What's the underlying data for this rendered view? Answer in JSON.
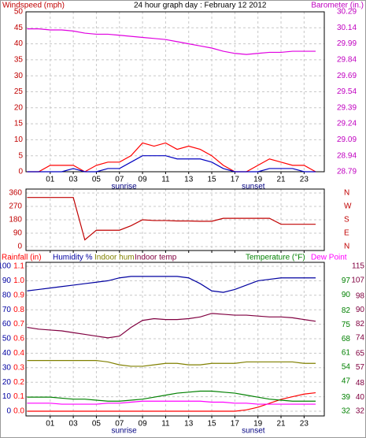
{
  "chart_data": [
    {
      "type": "line",
      "title": "24 hour graph day : February 12 2012",
      "ylabel": "Windspeed (mph)",
      "y2label": "Barometer (in.)",
      "x": [
        -1,
        0,
        1,
        2,
        3,
        4,
        5,
        6,
        7,
        8,
        9,
        10,
        11,
        12,
        13,
        14,
        15,
        16,
        17,
        18,
        19,
        20,
        21,
        22,
        23,
        24
      ],
      "xlim": [
        -1.1,
        24.75
      ],
      "xticks": [
        {
          "value": 1,
          "label": "01"
        },
        {
          "value": 3,
          "label": "03"
        },
        {
          "value": 5,
          "label": "05"
        },
        {
          "value": 7,
          "label": "07"
        },
        {
          "value": 9,
          "label": "09"
        },
        {
          "value": 11,
          "label": "11"
        },
        {
          "value": 13,
          "label": "13"
        },
        {
          "value": 15,
          "label": "15"
        },
        {
          "value": 17,
          "label": "17"
        },
        {
          "value": 19,
          "label": "19"
        },
        {
          "value": 21,
          "label": "21"
        },
        {
          "value": 23,
          "label": "23"
        }
      ],
      "annotations": [
        {
          "text": "sunrise",
          "x": 7.4
        },
        {
          "text": "sunset",
          "x": 18.6
        }
      ],
      "ylim": [
        0,
        50
      ],
      "yticks": [
        0,
        5,
        10,
        15,
        20,
        25,
        30,
        35,
        40,
        45,
        50
      ],
      "y2lim": [
        28.79,
        30.29
      ],
      "y2ticks": [
        28.79,
        28.94,
        29.09,
        29.24,
        29.39,
        29.54,
        29.69,
        29.84,
        29.99,
        30.14,
        30.29
      ],
      "grid": true,
      "series": [
        {
          "color": "#ff0000",
          "values": [
            0,
            0,
            2,
            2,
            2,
            0,
            2,
            3,
            3,
            5,
            9,
            8,
            9,
            7,
            8,
            7,
            5,
            2,
            0,
            0,
            2,
            4,
            3,
            2,
            2,
            0
          ]
        },
        {
          "color": "#0000c0",
          "values": [
            0,
            0,
            0,
            0,
            1,
            0,
            0,
            1,
            1,
            3,
            5,
            5,
            5,
            4,
            4,
            4,
            3,
            1,
            0,
            0,
            0,
            1,
            1,
            1,
            0,
            0
          ]
        },
        {
          "color": "#e000e0",
          "axis": "y2",
          "values": [
            30.13,
            30.13,
            30.12,
            30.12,
            30.11,
            30.09,
            30.08,
            30.08,
            30.07,
            30.06,
            30.05,
            30.04,
            30.03,
            30.01,
            29.99,
            29.97,
            29.95,
            29.92,
            29.9,
            29.89,
            29.9,
            29.91,
            29.91,
            29.92,
            29.92,
            29.92
          ]
        }
      ]
    },
    {
      "type": "line",
      "x": [
        -1,
        0,
        1,
        2,
        3,
        4,
        5,
        6,
        7,
        8,
        9,
        10,
        11,
        12,
        13,
        14,
        15,
        16,
        17,
        18,
        19,
        20,
        21,
        22,
        23,
        24
      ],
      "xlim": [
        -1.1,
        24.75
      ],
      "xticks": [
        1,
        3,
        5,
        7,
        9,
        11,
        13,
        15,
        17,
        19,
        21,
        23
      ],
      "ylim": [
        0,
        360
      ],
      "yticks": [
        0,
        90,
        180,
        270,
        360
      ],
      "y2lim": [
        0,
        360
      ],
      "y2ticks": [
        {
          "value": 0,
          "label": "N"
        },
        {
          "value": 90,
          "label": "E"
        },
        {
          "value": 180,
          "label": "S"
        },
        {
          "value": 270,
          "label": "W"
        },
        {
          "value": 360,
          "label": "N"
        }
      ],
      "grid": true,
      "series": [
        {
          "color": "#c00000",
          "values": [
            330,
            330,
            330,
            330,
            330,
            45,
            110,
            110,
            110,
            140,
            180,
            175,
            175,
            172,
            172,
            170,
            170,
            190,
            190,
            190,
            190,
            190,
            150,
            150,
            150,
            150
          ]
        }
      ]
    },
    {
      "type": "line",
      "x": [
        -1,
        0,
        1,
        2,
        3,
        4,
        5,
        6,
        7,
        8,
        9,
        10,
        11,
        12,
        13,
        14,
        15,
        16,
        17,
        18,
        19,
        20,
        21,
        22,
        23,
        24
      ],
      "xlim": [
        -1.1,
        24.75
      ],
      "xticks": [
        {
          "value": 1,
          "label": "01"
        },
        {
          "value": 3,
          "label": "03"
        },
        {
          "value": 5,
          "label": "05"
        },
        {
          "value": 7,
          "label": "07"
        },
        {
          "value": 9,
          "label": "09"
        },
        {
          "value": 11,
          "label": "11"
        },
        {
          "value": 13,
          "label": "13"
        },
        {
          "value": 15,
          "label": "15"
        },
        {
          "value": 17,
          "label": "17"
        },
        {
          "value": 19,
          "label": "19"
        },
        {
          "value": 21,
          "label": "21"
        },
        {
          "value": 23,
          "label": "23"
        }
      ],
      "annotations": [
        {
          "text": "sunrise",
          "x": 7.4
        },
        {
          "text": "sunset",
          "x": 18.6
        }
      ],
      "ylim": [
        0,
        100
      ],
      "yticks": [
        0,
        10,
        20,
        30,
        40,
        50,
        60,
        70,
        80,
        90,
        100
      ],
      "y4lim": [
        0,
        1.1
      ],
      "y4ticks": [
        {
          "value": 0,
          "label": "0.0"
        },
        {
          "value": 0.11,
          "label": "0.1"
        },
        {
          "value": 0.22,
          "label": "0.2"
        },
        {
          "value": 0.33,
          "label": "0.3"
        },
        {
          "value": 0.44,
          "label": "0.4"
        },
        {
          "value": 0.55,
          "label": "0.6"
        },
        {
          "value": 0.66,
          "label": "0.7"
        },
        {
          "value": 0.77,
          "label": "0.8"
        },
        {
          "value": 0.88,
          "label": "0.9"
        },
        {
          "value": 0.99,
          "label": "1.0"
        },
        {
          "value": 1.1,
          "label": "1.1"
        }
      ],
      "y2lim": [
        32,
        104.2
      ],
      "y2ticks": [
        32,
        39,
        47,
        54,
        61,
        68,
        75,
        82,
        90,
        97
      ],
      "y3lim": [
        32,
        115
      ],
      "y3ticks": [
        32,
        40,
        48,
        57,
        65,
        74,
        82,
        90,
        98,
        107,
        115
      ],
      "grid": true,
      "series": [
        {
          "name": "Rainfall (in)",
          "color": "#ff0000",
          "axis": "y4",
          "values": [
            0,
            0,
            0,
            0,
            0,
            0,
            0,
            0,
            0,
            0,
            0,
            0,
            0,
            0,
            0,
            0,
            0,
            0,
            0,
            0.01,
            0.03,
            0.06,
            0.09,
            0.11,
            0.13,
            0.14
          ]
        },
        {
          "name": "Humidity %",
          "color": "#0000a0",
          "values": [
            83,
            84,
            85,
            86,
            87,
            88,
            89,
            90,
            92,
            93,
            93,
            93,
            93,
            93,
            92,
            88,
            83,
            82,
            84,
            87,
            90,
            91,
            92,
            92,
            92,
            92
          ]
        },
        {
          "name": "Indoor hum",
          "color": "#808000",
          "values": [
            35,
            35,
            35,
            35,
            35,
            35,
            35,
            34,
            32,
            31,
            31,
            32,
            33,
            33,
            32,
            32,
            33,
            33,
            33,
            34,
            34,
            34,
            34,
            34,
            33,
            33
          ]
        },
        {
          "name": "Indoor temp",
          "color": "#800040",
          "axis": "y3",
          "values": [
            80,
            79,
            78.5,
            78,
            77,
            76,
            75,
            74,
            75,
            80,
            84,
            85,
            84.5,
            84.5,
            85,
            86,
            88,
            87.5,
            87,
            87,
            86.5,
            86,
            86,
            85.5,
            84.5,
            83.5
          ]
        },
        {
          "name": "Temperature (°F)",
          "color": "#008000",
          "axis": "y2",
          "values": [
            39,
            39,
            39,
            38.5,
            38,
            38,
            37.5,
            37,
            37,
            37.5,
            38,
            39,
            40,
            41,
            41.5,
            42,
            42,
            41.5,
            41,
            40,
            39,
            38,
            37.5,
            37,
            37,
            37
          ]
        },
        {
          "name": "Dew Point",
          "color": "#ff00ff",
          "axis": "y2",
          "values": [
            36,
            36,
            36,
            35.5,
            35.5,
            35.5,
            35.5,
            36,
            36,
            36.5,
            37,
            37,
            37,
            37,
            37,
            37,
            36.5,
            36.5,
            36,
            36,
            35.5,
            35.5,
            35.5,
            35.5,
            35.5,
            35.5
          ]
        }
      ]
    }
  ]
}
